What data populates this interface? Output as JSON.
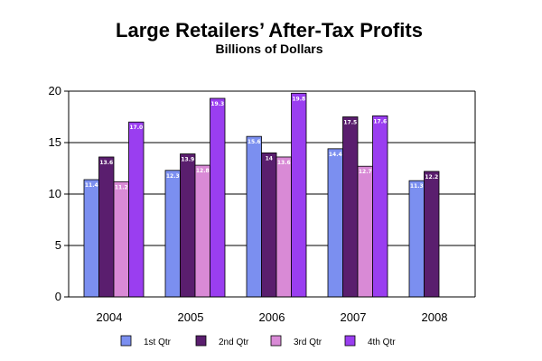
{
  "chart_data": {
    "type": "bar",
    "title": "Large Retailers’ After-Tax Profits",
    "subtitle": "Billions of Dollars",
    "categories": [
      "2004",
      "2005",
      "2006",
      "2007",
      "2008"
    ],
    "series": [
      {
        "name": "1st Qtr",
        "color": "#7b8ff0",
        "values": [
          11.4,
          12.3,
          15.6,
          14.4,
          11.3
        ]
      },
      {
        "name": "2nd Qtr",
        "color": "#5a1e6e",
        "values": [
          13.6,
          13.9,
          14.0,
          17.5,
          12.2
        ]
      },
      {
        "name": "3rd Qtr",
        "color": "#d98ad6",
        "values": [
          11.2,
          12.8,
          13.6,
          12.7,
          null
        ]
      },
      {
        "name": "4th Qtr",
        "color": "#9a3ef0",
        "values": [
          17.0,
          19.3,
          19.8,
          17.6,
          null
        ]
      }
    ],
    "data_labels": [
      [
        "11.4",
        "12.3",
        "15.6",
        "14.4",
        "11.3"
      ],
      [
        "13.6",
        "13.9",
        "14",
        "17.5",
        "12.2"
      ],
      [
        "11.2",
        "12.8",
        "13.6",
        "12.7",
        ""
      ],
      [
        "17.0",
        "19.3",
        "19.8",
        "17.6",
        ""
      ]
    ],
    "ylim": [
      0,
      20
    ],
    "yticks": [
      0,
      5,
      10,
      15,
      20
    ],
    "grid": true,
    "legend": "bottom"
  }
}
